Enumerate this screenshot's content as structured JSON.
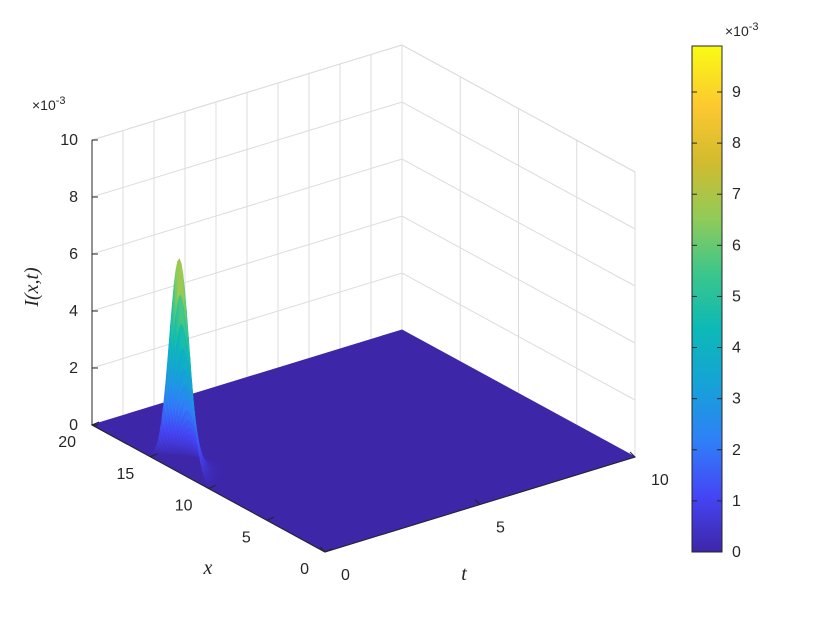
{
  "chart_data": {
    "type": "surface",
    "zlabel": "I(x,t)",
    "xlabel": "x",
    "ylabel": "t",
    "x_ticks": [
      "0",
      "5",
      "10",
      "15",
      "20"
    ],
    "t_ticks": [
      "0",
      "5",
      "10"
    ],
    "z_ticks": [
      "0",
      "2",
      "4",
      "6",
      "8",
      "10"
    ],
    "z_multiplier": "×10-3",
    "xlim": [
      0,
      20
    ],
    "tlim": [
      0,
      10
    ],
    "zlim": [
      0,
      0.01
    ],
    "peak": {
      "x": 12.5,
      "t": 0,
      "I": 0.0075
    },
    "colorbar": {
      "ticks": [
        "0",
        "1",
        "2",
        "3",
        "4",
        "5",
        "6",
        "7",
        "8",
        "9"
      ],
      "multiplier": "×10-3",
      "range": [
        0,
        0.0099
      ],
      "colormap": "parula",
      "colors": [
        "#3e26a8",
        "#4545f5",
        "#2f80f8",
        "#16a2d7",
        "#0cb9b7",
        "#3bc68b",
        "#91cb58",
        "#d2bb2f",
        "#fcc830",
        "#f9fa14"
      ]
    },
    "grid": true
  }
}
